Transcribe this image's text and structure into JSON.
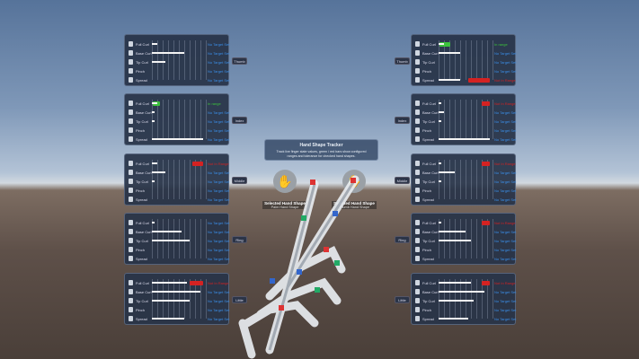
{
  "tracker": {
    "title": "Hand Shape Tracker",
    "description": "Track live finger state values, green / red bars show configured ranges and tolerance for checked hand shapes."
  },
  "selected_left": {
    "title": "Selected Hand Shape",
    "value": "Palm Hand Shape",
    "icon": "open-hand-icon"
  },
  "selected_right": {
    "title": "Selected Hand Shape",
    "value": "Thumb Hand Shape",
    "icon": "thumb-hand-icon"
  },
  "row_labels": [
    "Full Curl",
    "Base Curl",
    "Tip Curl",
    "Pinch",
    "Spread"
  ],
  "colors": {
    "in_range": "#3cc23c",
    "out_of_range": "#d42222",
    "no_target": "#3a8ee8"
  },
  "left_panels": [
    {
      "finger": "Thumb",
      "rows": [
        {
          "value": 0.1,
          "status": "No Target Set"
        },
        {
          "value": 0.6,
          "status": "No Target Set"
        },
        {
          "value": 0.25,
          "status": "No Target Set"
        },
        {
          "value": 0,
          "status": "No Target Set"
        },
        {
          "value": 0,
          "status": "No Target Set"
        }
      ]
    },
    {
      "finger": "Index",
      "rows": [
        {
          "value": 0.1,
          "range": [
            0.02,
            0.15
          ],
          "range_state": "in",
          "status": "In range"
        },
        {
          "value": 0.05,
          "status": "No Target Set"
        },
        {
          "value": 0.05,
          "status": "No Target Set"
        },
        {
          "value": 0,
          "status": "No Target Set"
        },
        {
          "value": 0.95,
          "status": "No Target Set"
        }
      ]
    },
    {
      "finger": "Middle",
      "rows": [
        {
          "value": 0.1,
          "range": [
            0.75,
            0.95
          ],
          "range_state": "out",
          "status": "Not In Range"
        },
        {
          "value": 0.25,
          "status": "No Target Set"
        },
        {
          "value": 0.05,
          "status": "No Target Set"
        },
        {
          "value": 0,
          "status": "No Target Set"
        },
        {
          "value": 0,
          "status": "No Target Set"
        }
      ]
    },
    {
      "finger": "Ring",
      "rows": [
        {
          "value": 0.05,
          "status": "No Target Set"
        },
        {
          "value": 0.55,
          "status": "No Target Set"
        },
        {
          "value": 0.7,
          "status": "No Target Set"
        },
        {
          "value": 0,
          "status": "No Target Set"
        },
        {
          "value": 0,
          "status": "No Target Set"
        }
      ]
    },
    {
      "finger": "Little",
      "rows": [
        {
          "value": 0.65,
          "range": [
            0.7,
            0.95
          ],
          "range_state": "out",
          "status": "Not In Range"
        },
        {
          "value": 0.9,
          "status": "No Target Set"
        },
        {
          "value": 0.7,
          "status": "No Target Set"
        },
        {
          "value": 0,
          "status": "No Target Set"
        },
        {
          "value": 0.6,
          "status": "No Target Set"
        }
      ]
    }
  ],
  "right_panels": [
    {
      "finger": "Thumb",
      "rows": [
        {
          "value": 0.1,
          "range": [
            0.02,
            0.22
          ],
          "range_state": "in",
          "status": "In range"
        },
        {
          "value": 0.4,
          "status": "No Target Set"
        },
        {
          "value": 0,
          "status": "No Target Set"
        },
        {
          "value": 0,
          "status": "No Target Set"
        },
        {
          "value": 0.4,
          "range": [
            0.55,
            0.95
          ],
          "range_state": "out",
          "status": "Not In Range"
        }
      ]
    },
    {
      "finger": "Index",
      "rows": [
        {
          "value": 0.05,
          "range": [
            0.8,
            0.95
          ],
          "range_state": "out",
          "status": "Not In Range"
        },
        {
          "value": 0.1,
          "status": "No Target Set"
        },
        {
          "value": 0.05,
          "status": "No Target Set"
        },
        {
          "value": 0,
          "status": "No Target Set"
        },
        {
          "value": 0.95,
          "status": "No Target Set"
        }
      ]
    },
    {
      "finger": "Middle",
      "rows": [
        {
          "value": 0.05,
          "range": [
            0.8,
            0.95
          ],
          "range_state": "out",
          "status": "Not In Range"
        },
        {
          "value": 0.3,
          "status": "No Target Set"
        },
        {
          "value": 0.05,
          "status": "No Target Set"
        },
        {
          "value": 0,
          "status": "No Target Set"
        },
        {
          "value": 0,
          "status": "No Target Set"
        }
      ]
    },
    {
      "finger": "Ring",
      "rows": [
        {
          "value": 0.05,
          "range": [
            0.8,
            0.95
          ],
          "range_state": "out",
          "status": "Not In Range"
        },
        {
          "value": 0.5,
          "status": "No Target Set"
        },
        {
          "value": 0.6,
          "status": "No Target Set"
        },
        {
          "value": 0,
          "status": "No Target Set"
        },
        {
          "value": 0,
          "status": "No Target Set"
        }
      ]
    },
    {
      "finger": "Little",
      "rows": [
        {
          "value": 0.6,
          "range": [
            0.8,
            0.95
          ],
          "range_state": "out",
          "status": "Not In Range"
        },
        {
          "value": 0.85,
          "status": "No Target Set"
        },
        {
          "value": 0.65,
          "status": "No Target Set"
        },
        {
          "value": 0,
          "status": "No Target Set"
        },
        {
          "value": 0.55,
          "status": "No Target Set"
        }
      ]
    }
  ]
}
